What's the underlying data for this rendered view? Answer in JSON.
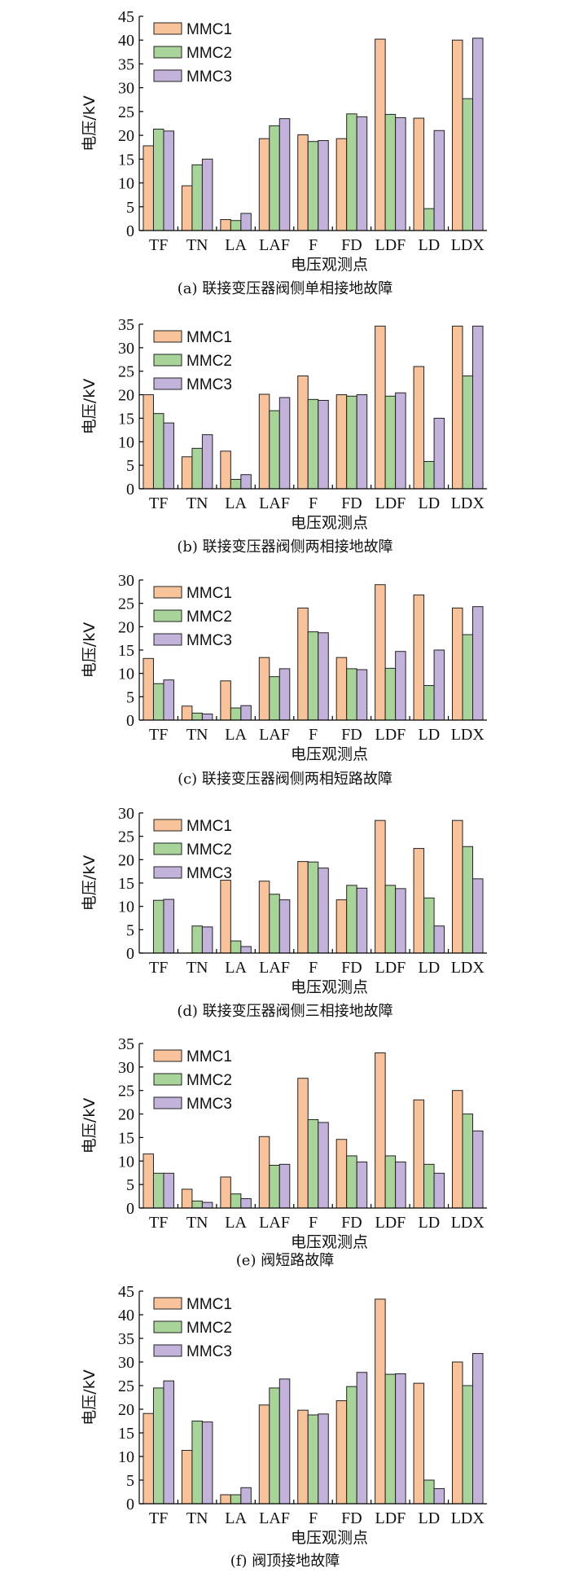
{
  "colors": {
    "MMC1": "#F8C29B",
    "MMC2": "#A8D49A",
    "MMC3": "#C3B3DB"
  },
  "chart_data": [
    {
      "id": "a",
      "type": "bar",
      "caption": "(a)  联接变压器阀侧单相接地故障",
      "xlabel": "电压观测点",
      "ylabel": "电压/kV",
      "ylim": [
        0,
        45
      ],
      "yticks": [
        0,
        5,
        10,
        15,
        20,
        25,
        30,
        35,
        40,
        45
      ],
      "categories": [
        "TF",
        "TN",
        "LA",
        "LAF",
        "F",
        "FD",
        "LDF",
        "LD",
        "LDX"
      ],
      "legend": "top-left",
      "series": [
        {
          "name": "MMC1",
          "values": [
            17.8,
            9.4,
            2.3,
            19.3,
            20.1,
            19.3,
            40.2,
            23.6,
            40.0
          ]
        },
        {
          "name": "MMC2",
          "values": [
            21.3,
            13.8,
            2.1,
            22.0,
            18.7,
            24.5,
            24.4,
            4.6,
            27.7
          ]
        },
        {
          "name": "MMC3",
          "values": [
            20.9,
            15.0,
            3.6,
            23.5,
            18.9,
            23.9,
            23.7,
            21.0,
            40.4
          ]
        }
      ]
    },
    {
      "id": "b",
      "type": "bar",
      "caption": "(b)  联接变压器阀侧两相接地故障",
      "xlabel": "电压观测点",
      "ylabel": "电压/kV",
      "ylim": [
        0,
        35
      ],
      "yticks": [
        0,
        5,
        10,
        15,
        20,
        25,
        30,
        35
      ],
      "categories": [
        "TF",
        "TN",
        "LA",
        "LAF",
        "F",
        "FD",
        "LDF",
        "LD",
        "LDX"
      ],
      "legend": "top-left",
      "series": [
        {
          "name": "MMC1",
          "values": [
            20.0,
            6.8,
            8.0,
            20.1,
            24.0,
            20.0,
            34.6,
            26.0,
            34.6
          ]
        },
        {
          "name": "MMC2",
          "values": [
            16.0,
            8.6,
            2.0,
            16.6,
            19.0,
            19.7,
            19.7,
            5.8,
            24.0
          ]
        },
        {
          "name": "MMC3",
          "values": [
            14.0,
            11.5,
            3.0,
            19.4,
            18.8,
            20.0,
            20.4,
            15.0,
            34.6
          ]
        }
      ]
    },
    {
      "id": "c",
      "type": "bar",
      "caption": "(c)  联接变压器阀侧两相短路故障",
      "xlabel": "电压观测点",
      "ylabel": "电压/kV",
      "ylim": [
        0,
        30
      ],
      "yticks": [
        0,
        5,
        10,
        15,
        20,
        25,
        30
      ],
      "categories": [
        "TF",
        "TN",
        "LA",
        "LAF",
        "F",
        "FD",
        "LDF",
        "LD",
        "LDX"
      ],
      "legend": "top-left",
      "series": [
        {
          "name": "MMC1",
          "values": [
            13.2,
            3.0,
            8.4,
            13.4,
            24.0,
            13.4,
            29.0,
            26.8,
            24.0
          ]
        },
        {
          "name": "MMC2",
          "values": [
            7.8,
            1.5,
            2.6,
            9.3,
            18.9,
            11.0,
            11.1,
            7.4,
            18.3
          ]
        },
        {
          "name": "MMC3",
          "values": [
            8.6,
            1.3,
            3.1,
            11.0,
            18.7,
            10.8,
            14.7,
            15.0,
            24.3
          ]
        }
      ]
    },
    {
      "id": "d",
      "type": "bar",
      "caption": "(d)  联接变压器阀侧三相接地故障",
      "xlabel": "电压观测点",
      "ylabel": "电压/kV",
      "ylim": [
        0,
        30
      ],
      "yticks": [
        0,
        5,
        10,
        15,
        20,
        25,
        30
      ],
      "categories": [
        "TF",
        "TN",
        "LA",
        "LAF",
        "F",
        "FD",
        "LDF",
        "LD",
        "LDX"
      ],
      "legend": "top-left",
      "series": [
        {
          "name": "MMC1",
          "values": [
            0,
            0,
            15.6,
            15.4,
            19.6,
            11.4,
            28.4,
            22.4,
            28.4
          ]
        },
        {
          "name": "MMC2",
          "values": [
            11.3,
            5.8,
            2.6,
            12.6,
            19.5,
            14.5,
            14.5,
            11.8,
            22.8
          ]
        },
        {
          "name": "MMC3",
          "values": [
            11.5,
            5.6,
            1.4,
            11.4,
            18.2,
            13.9,
            13.8,
            5.8,
            15.9
          ]
        }
      ]
    },
    {
      "id": "e",
      "type": "bar",
      "caption": "(e)  阀短路故障",
      "xlabel": "电压观测点",
      "ylabel": "电压/kV",
      "ylim": [
        0,
        35
      ],
      "yticks": [
        0,
        5,
        10,
        15,
        20,
        25,
        30,
        35
      ],
      "categories": [
        "TF",
        "TN",
        "LA",
        "LAF",
        "F",
        "FD",
        "LDF",
        "LD",
        "LDX"
      ],
      "legend": "top-left",
      "series": [
        {
          "name": "MMC1",
          "values": [
            11.5,
            4.0,
            6.6,
            15.2,
            27.6,
            14.6,
            33.0,
            23.0,
            25.0
          ]
        },
        {
          "name": "MMC2",
          "values": [
            7.4,
            1.5,
            3.0,
            9.1,
            18.8,
            11.1,
            11.1,
            9.3,
            20.0
          ]
        },
        {
          "name": "MMC3",
          "values": [
            7.4,
            1.2,
            2.0,
            9.3,
            18.2,
            9.8,
            9.8,
            7.4,
            16.4
          ]
        }
      ]
    },
    {
      "id": "f",
      "type": "bar",
      "caption": "(f)  阀顶接地故障",
      "xlabel": "电压观测点",
      "ylabel": "电压/kV",
      "ylim": [
        0,
        45
      ],
      "yticks": [
        0,
        5,
        10,
        15,
        20,
        25,
        30,
        35,
        40,
        45
      ],
      "categories": [
        "TF",
        "TN",
        "LA",
        "LAF",
        "F",
        "FD",
        "LDF",
        "LD",
        "LDX"
      ],
      "legend": "top-left",
      "series": [
        {
          "name": "MMC1",
          "values": [
            19.1,
            11.3,
            1.9,
            20.9,
            19.8,
            21.8,
            43.3,
            25.5,
            30.0
          ]
        },
        {
          "name": "MMC2",
          "values": [
            24.5,
            17.5,
            1.9,
            24.5,
            18.8,
            24.8,
            27.4,
            5.0,
            25.0
          ]
        },
        {
          "name": "MMC3",
          "values": [
            26.0,
            17.3,
            3.4,
            26.4,
            19.0,
            27.8,
            27.5,
            3.2,
            31.8
          ]
        }
      ]
    }
  ]
}
